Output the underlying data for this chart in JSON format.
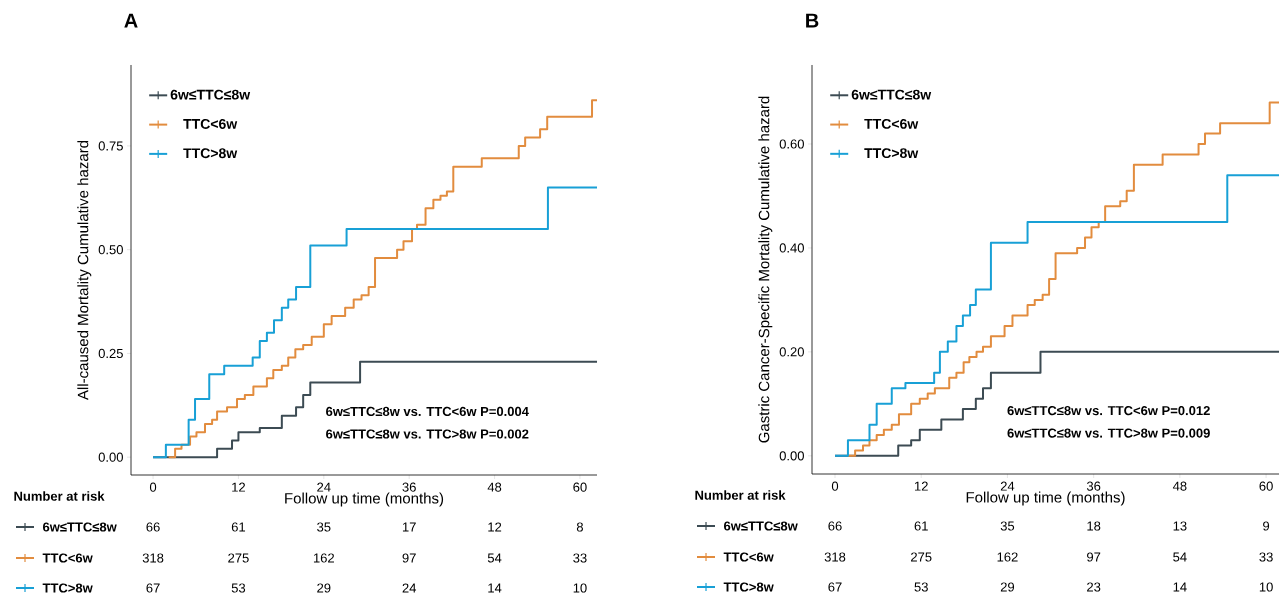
{
  "chart_data": [
    {
      "type": "step",
      "title": "A",
      "xlabel": "Follow up time (months)",
      "ylabel": "All-caused Mortality Cumulative hazard",
      "xlim": [
        -3.1,
        62.4
      ],
      "ylim": [
        -0.043,
        0.945
      ],
      "xticks": [
        0,
        12,
        24,
        36,
        48,
        60
      ],
      "yticks": [
        {
          "value": 0,
          "label": "0.00"
        },
        {
          "value": 0.25,
          "label": "0.25"
        },
        {
          "value": 0.5,
          "label": "0.50"
        },
        {
          "value": 0.75,
          "label": "0.75"
        }
      ],
      "legend": "left",
      "series": [
        {
          "name": "6w≤TTC≤8w",
          "color": "#3c4b53",
          "x": [
            0,
            9.0,
            11.1,
            12.0,
            15.0,
            18.1,
            20.1,
            21.1,
            22.1,
            29.1,
            62.4
          ],
          "values": [
            0,
            0.02,
            0.04,
            0.06,
            0.07,
            0.1,
            0.12,
            0.15,
            0.18,
            0.23,
            0.23
          ]
        },
        {
          "name": "TTC<6w",
          "color": "#e28c3e",
          "x": [
            2.2,
            3.1,
            4.0,
            5.2,
            6.1,
            7.3,
            8.3,
            9.0,
            10.4,
            11.8,
            12.9,
            14.1,
            16.0,
            16.9,
            18.1,
            19.0,
            20.0,
            21.1,
            22.3,
            24.0,
            25.1,
            27.0,
            28.2,
            29.3,
            30.3,
            31.2,
            34.3,
            35.2,
            36.4,
            37.1,
            38.3,
            39.4,
            40.4,
            41.3,
            42.2,
            46.2,
            51.4,
            52.3,
            54.4,
            55.4,
            61.7,
            62.4
          ],
          "values": [
            0,
            0.02,
            0.03,
            0.05,
            0.06,
            0.08,
            0.09,
            0.11,
            0.12,
            0.14,
            0.15,
            0.17,
            0.19,
            0.21,
            0.22,
            0.24,
            0.26,
            0.27,
            0.29,
            0.32,
            0.34,
            0.36,
            0.38,
            0.39,
            0.41,
            0.48,
            0.5,
            0.52,
            0.55,
            0.56,
            0.6,
            0.62,
            0.63,
            0.64,
            0.7,
            0.72,
            0.75,
            0.77,
            0.79,
            0.82,
            0.86,
            0.86
          ]
        },
        {
          "name": "TTC>8w",
          "color": "#18a0d6",
          "x": [
            0,
            1.8,
            5.0,
            5.9,
            7.9,
            10.0,
            14.0,
            15.0,
            16.0,
            17.0,
            18.1,
            19.0,
            20.1,
            22.1,
            27.2,
            55.5,
            62.4
          ],
          "values": [
            0,
            0.03,
            0.09,
            0.14,
            0.2,
            0.22,
            0.24,
            0.28,
            0.3,
            0.33,
            0.36,
            0.38,
            0.41,
            0.51,
            0.55,
            0.65,
            0.65
          ]
        }
      ],
      "annotations": [
        "6w≤TTC≤8w vs. TTC<6w P=0.004",
        "6w≤TTC≤8w vs. TTC>8w P=0.002",
        "Number at risk",
        "66",
        "61",
        "35",
        "17",
        "12",
        "8",
        "318",
        "275",
        "162",
        "97",
        "54",
        "33",
        "67",
        "53",
        "29",
        "24",
        "14",
        "10"
      ]
    },
    {
      "type": "step",
      "title": "B",
      "xlabel": "Follow up time (months)",
      "ylabel": "Gastric Cancer-Specific Mortality Cumulative hazard",
      "xlim": [
        -3.2,
        61.8
      ],
      "ylim": [
        -0.035,
        0.752
      ],
      "xticks": [
        0,
        12,
        24,
        36,
        48,
        60
      ],
      "yticks": [
        {
          "value": 0,
          "label": "0.00"
        },
        {
          "value": 0.2,
          "label": "0.20"
        },
        {
          "value": 0.4,
          "label": "0.40"
        },
        {
          "value": 0.6,
          "label": "0.60"
        }
      ],
      "legend": "left",
      "series": [
        {
          "name": "6w≤TTC≤8w",
          "color": "#3c4b53",
          "x": [
            0,
            8.8,
            10.6,
            11.8,
            14.8,
            17.8,
            19.6,
            20.6,
            21.7,
            28.6,
            61.8
          ],
          "values": [
            0,
            0.02,
            0.03,
            0.05,
            0.07,
            0.09,
            0.11,
            0.13,
            0.16,
            0.2,
            0.2
          ]
        },
        {
          "name": "TTC<6w",
          "color": "#e28c3e",
          "x": [
            1.8,
            2.8,
            3.9,
            4.8,
            5.8,
            6.8,
            7.9,
            8.9,
            10.6,
            11.8,
            12.9,
            13.9,
            15.9,
            16.9,
            17.9,
            18.7,
            19.7,
            20.6,
            21.7,
            23.6,
            24.7,
            26.8,
            27.8,
            28.9,
            29.8,
            30.7,
            33.7,
            34.8,
            35.7,
            36.7,
            37.6,
            39.7,
            40.6,
            41.6,
            45.6,
            50.6,
            51.5,
            53.6,
            60.5,
            61.8
          ],
          "values": [
            0,
            0.01,
            0.02,
            0.03,
            0.04,
            0.05,
            0.06,
            0.08,
            0.1,
            0.11,
            0.12,
            0.13,
            0.15,
            0.16,
            0.18,
            0.19,
            0.2,
            0.21,
            0.23,
            0.25,
            0.27,
            0.29,
            0.3,
            0.31,
            0.34,
            0.39,
            0.4,
            0.42,
            0.44,
            0.45,
            0.48,
            0.49,
            0.51,
            0.56,
            0.58,
            0.6,
            0.62,
            0.64,
            0.68,
            0.68
          ]
        },
        {
          "name": "TTC>8w",
          "color": "#18a0d6",
          "x": [
            0,
            1.8,
            4.8,
            5.8,
            7.9,
            9.8,
            13.8,
            14.6,
            15.7,
            16.9,
            17.8,
            18.8,
            19.6,
            21.7,
            26.8,
            54.6,
            61.8
          ],
          "values": [
            0,
            0.03,
            0.06,
            0.1,
            0.13,
            0.14,
            0.16,
            0.2,
            0.22,
            0.25,
            0.27,
            0.29,
            0.32,
            0.41,
            0.45,
            0.54,
            0.54
          ]
        }
      ],
      "annotations": [
        "6w≤TTC≤8w vs. TTC<6w P=0.012",
        "6w≤TTC≤8w vs. TTC>8w P=0.009",
        "Number at risk",
        "66",
        "61",
        "35",
        "18",
        "13",
        "9",
        "318",
        "275",
        "162",
        "97",
        "54",
        "33",
        "67",
        "53",
        "29",
        "23",
        "14",
        "10"
      ]
    }
  ]
}
